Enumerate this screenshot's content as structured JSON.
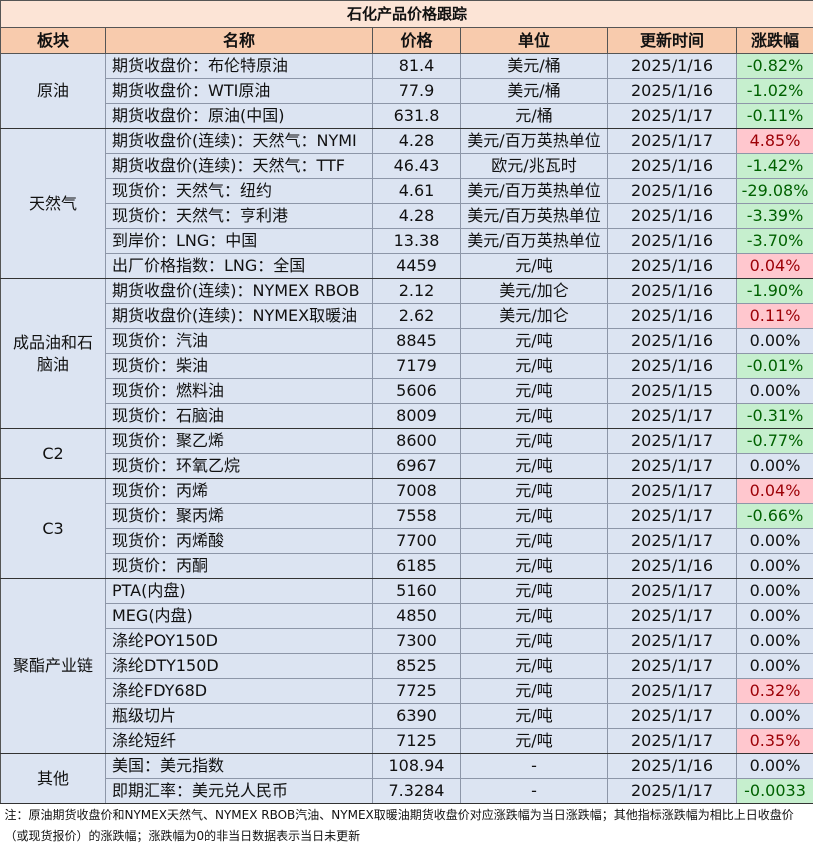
{
  "table": {
    "title": "石化产品价格跟踪",
    "headers": [
      "板块",
      "名称",
      "价格",
      "单位",
      "更新时间",
      "涨跌幅"
    ],
    "groups": [
      {
        "name": "原油",
        "rows": [
          [
            "期货收盘价：布伦特原油",
            "81.4",
            "美元/桶",
            "2025/1/16",
            "-0.82%"
          ],
          [
            "期货收盘价：WTI原油",
            "77.9",
            "美元/桶",
            "2025/1/16",
            "-1.02%"
          ],
          [
            "期货收盘价：原油(中国)",
            "631.8",
            "元/桶",
            "2025/1/17",
            "-0.11%"
          ]
        ]
      },
      {
        "name": "天然气",
        "rows": [
          [
            "期货收盘价(连续)：天然气：NYMI",
            "4.28",
            "美元/百万英热单位",
            "2025/1/17",
            "4.85%"
          ],
          [
            "期货收盘价(连续)：天然气：TTF",
            "46.43",
            "欧元/兆瓦时",
            "2025/1/16",
            "-1.42%"
          ],
          [
            "现货价：天然气：纽约",
            "4.61",
            "美元/百万英热单位",
            "2025/1/16",
            "-29.08%"
          ],
          [
            "现货价：天然气：亨利港",
            "4.28",
            "美元/百万英热单位",
            "2025/1/16",
            "-3.39%"
          ],
          [
            "到岸价：LNG：中国",
            "13.38",
            "美元/百万英热单位",
            "2025/1/16",
            "-3.70%"
          ],
          [
            "出厂价格指数：LNG：全国",
            "4459",
            "元/吨",
            "2025/1/16",
            "0.04%"
          ]
        ]
      },
      {
        "name": "成品油和石脑油",
        "rows": [
          [
            "期货收盘价(连续)：NYMEX RBOB",
            "2.12",
            "美元/加仑",
            "2025/1/16",
            "-1.90%"
          ],
          [
            "期货收盘价(连续)：NYMEX取暖油",
            "2.62",
            "美元/加仑",
            "2025/1/16",
            "0.11%"
          ],
          [
            "现货价：汽油",
            "8845",
            "元/吨",
            "2025/1/16",
            "0.00%"
          ],
          [
            "现货价：柴油",
            "7179",
            "元/吨",
            "2025/1/16",
            "-0.01%"
          ],
          [
            "现货价：燃料油",
            "5606",
            "元/吨",
            "2025/1/15",
            "0.00%"
          ],
          [
            "现货价：石脑油",
            "8009",
            "元/吨",
            "2025/1/17",
            "-0.31%"
          ]
        ]
      },
      {
        "name": "C2",
        "rows": [
          [
            "现货价：聚乙烯",
            "8600",
            "元/吨",
            "2025/1/17",
            "-0.77%"
          ],
          [
            "现货价：环氧乙烷",
            "6967",
            "元/吨",
            "2025/1/17",
            "0.00%"
          ]
        ]
      },
      {
        "name": "C3",
        "rows": [
          [
            "现货价：丙烯",
            "7008",
            "元/吨",
            "2025/1/17",
            "0.04%"
          ],
          [
            "现货价：聚丙烯",
            "7558",
            "元/吨",
            "2025/1/17",
            "-0.66%"
          ],
          [
            "现货价：丙烯酸",
            "7700",
            "元/吨",
            "2025/1/17",
            "0.00%"
          ],
          [
            "现货价：丙酮",
            "6185",
            "元/吨",
            "2025/1/16",
            "0.00%"
          ]
        ]
      },
      {
        "name": "聚酯产业链",
        "rows": [
          [
            "PTA(内盘)",
            "5160",
            "元/吨",
            "2025/1/17",
            "0.00%"
          ],
          [
            "MEG(内盘)",
            "4850",
            "元/吨",
            "2025/1/17",
            "0.00%"
          ],
          [
            "涤纶POY150D",
            "7300",
            "元/吨",
            "2025/1/17",
            "0.00%"
          ],
          [
            "涤纶DTY150D",
            "8525",
            "元/吨",
            "2025/1/17",
            "0.00%"
          ],
          [
            "涤纶FDY68D",
            "7725",
            "元/吨",
            "2025/1/17",
            "0.32%"
          ],
          [
            "瓶级切片",
            "6390",
            "元/吨",
            "2025/1/17",
            "0.00%"
          ],
          [
            "涤纶短纤",
            "7125",
            "元/吨",
            "2025/1/17",
            "0.35%"
          ]
        ]
      },
      {
        "name": "其他",
        "rows": [
          [
            "美国：美元指数",
            "108.94",
            "-",
            "2025/1/16",
            "0.00%"
          ],
          [
            "即期汇率：美元兑人民币",
            "7.3284",
            "-",
            "2025/1/17",
            "-0.0033"
          ]
        ]
      }
    ],
    "note": "注：原油期货收盘价和NYMEX天然气、NYMEX RBOB汽油、NYMEX取暖油期货收盘价对应涨跌幅为当日涨跌幅；其他指标涨跌幅为相比上日收盘价（或现货报价）的涨跌幅；涨跌幅为0的非当日数据表示当日未更新"
  }
}
